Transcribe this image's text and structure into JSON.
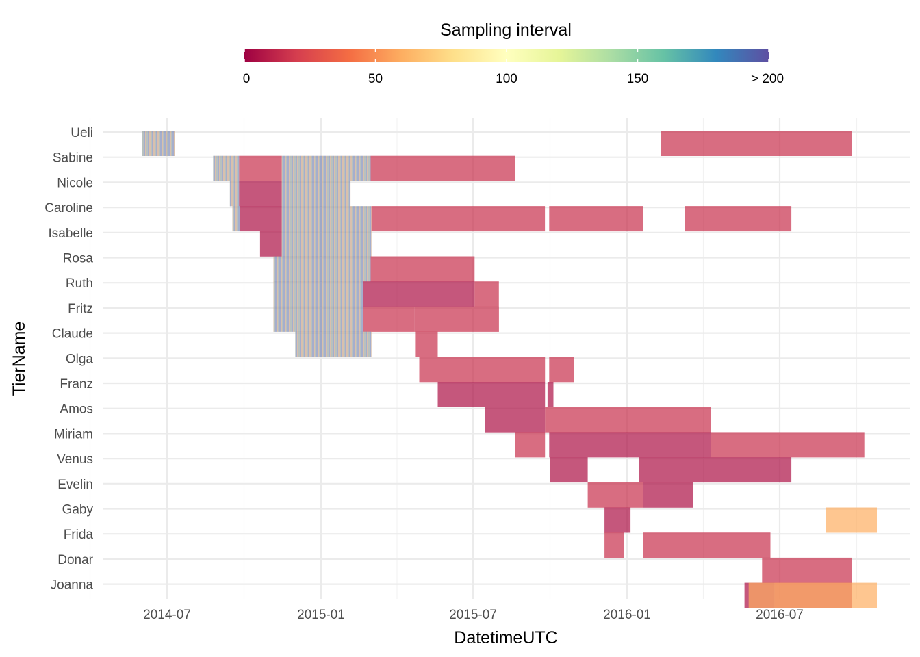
{
  "chart_data": {
    "type": "gantt",
    "xlabel": "DatetimeUTC",
    "ylabel": "TierName",
    "x_ticks": [
      "2014-07",
      "2015-01",
      "2015-07",
      "2016-01",
      "2016-07"
    ],
    "xlim": [
      "2014-05-01",
      "2016-11-20"
    ],
    "grid": true,
    "legend": {
      "title": "Sampling interval",
      "position": "top",
      "type": "colorbar",
      "palette": "Spectral",
      "ticks": [
        "0",
        "50",
        "100",
        "150",
        "> 200"
      ],
      "range": [
        0,
        200
      ],
      "colors": [
        "#9e0142",
        "#d53e4f",
        "#f46d43",
        "#fdae61",
        "#fee08b",
        "#ffffbf",
        "#e6f598",
        "#abdda4",
        "#66c2a5",
        "#3288bd",
        "#5e4fa2"
      ]
    },
    "categories": [
      "Ueli",
      "Sabine",
      "Nicole",
      "Caroline",
      "Isabelle",
      "Rosa",
      "Ruth",
      "Fritz",
      "Claude",
      "Olga",
      "Franz",
      "Amos",
      "Miriam",
      "Venus",
      "Evelin",
      "Gaby",
      "Frida",
      "Donar",
      "Joanna"
    ],
    "series": [
      {
        "name": "Ueli",
        "segments": [
          {
            "start": "2014-06-01",
            "end": "2014-07-10",
            "interval": 200,
            "mixed": true
          },
          {
            "start": "2016-02-10",
            "end": "2016-09-25",
            "interval": 15
          }
        ]
      },
      {
        "name": "Sabine",
        "segments": [
          {
            "start": "2014-08-25",
            "end": "2014-09-25",
            "interval": 200,
            "mixed": true
          },
          {
            "start": "2014-09-25",
            "end": "2014-11-15",
            "interval": 15
          },
          {
            "start": "2014-11-15",
            "end": "2015-03-01",
            "interval": 100,
            "mixed": true
          },
          {
            "start": "2015-03-01",
            "end": "2015-08-20",
            "interval": 15
          }
        ]
      },
      {
        "name": "Nicole",
        "segments": [
          {
            "start": "2014-09-14",
            "end": "2014-09-25",
            "interval": 200,
            "mixed": true
          },
          {
            "start": "2014-09-25",
            "end": "2014-11-15",
            "interval": 5
          },
          {
            "start": "2014-11-15",
            "end": "2015-02-05",
            "interval": 100,
            "mixed": true
          }
        ]
      },
      {
        "name": "Caroline",
        "segments": [
          {
            "start": "2014-09-17",
            "end": "2014-09-26",
            "interval": 200,
            "mixed": true
          },
          {
            "start": "2014-09-26",
            "end": "2014-11-15",
            "interval": 5
          },
          {
            "start": "2014-11-15",
            "end": "2015-03-02",
            "interval": 100,
            "mixed": true
          },
          {
            "start": "2015-03-02",
            "end": "2015-09-25",
            "interval": 15
          },
          {
            "start": "2015-09-30",
            "end": "2016-01-20",
            "interval": 15
          },
          {
            "start": "2016-03-10",
            "end": "2016-07-15",
            "interval": 15
          }
        ]
      },
      {
        "name": "Isabelle",
        "segments": [
          {
            "start": "2014-10-20",
            "end": "2014-11-15",
            "interval": 5
          },
          {
            "start": "2014-11-15",
            "end": "2015-03-02",
            "interval": 100,
            "mixed": true
          }
        ]
      },
      {
        "name": "Rosa",
        "segments": [
          {
            "start": "2014-11-05",
            "end": "2015-03-01",
            "interval": 100,
            "mixed": true
          },
          {
            "start": "2015-03-01",
            "end": "2015-07-03",
            "interval": 15
          }
        ]
      },
      {
        "name": "Ruth",
        "segments": [
          {
            "start": "2014-11-05",
            "end": "2015-02-20",
            "interval": 100,
            "mixed": true
          },
          {
            "start": "2015-02-20",
            "end": "2015-07-03",
            "interval": 5
          },
          {
            "start": "2015-07-03",
            "end": "2015-08-01",
            "interval": 15
          }
        ]
      },
      {
        "name": "Fritz",
        "segments": [
          {
            "start": "2014-11-05",
            "end": "2015-02-20",
            "interval": 100,
            "mixed": true
          },
          {
            "start": "2015-02-20",
            "end": "2015-04-22",
            "interval": 15
          },
          {
            "start": "2015-04-22",
            "end": "2015-08-01",
            "interval": 15
          }
        ]
      },
      {
        "name": "Claude",
        "segments": [
          {
            "start": "2014-12-01",
            "end": "2015-03-02",
            "interval": 100,
            "mixed": true
          },
          {
            "start": "2015-04-23",
            "end": "2015-05-20",
            "interval": 15
          }
        ]
      },
      {
        "name": "Olga",
        "segments": [
          {
            "start": "2015-04-28",
            "end": "2015-09-25",
            "interval": 15
          },
          {
            "start": "2015-09-30",
            "end": "2015-10-30",
            "interval": 15
          }
        ]
      },
      {
        "name": "Franz",
        "segments": [
          {
            "start": "2015-05-20",
            "end": "2015-09-25",
            "interval": 5
          },
          {
            "start": "2015-09-28",
            "end": "2015-10-05",
            "interval": 5
          }
        ]
      },
      {
        "name": "Amos",
        "segments": [
          {
            "start": "2015-07-15",
            "end": "2015-09-25",
            "interval": 5
          },
          {
            "start": "2015-09-25",
            "end": "2016-04-10",
            "interval": 15
          }
        ]
      },
      {
        "name": "Miriam",
        "segments": [
          {
            "start": "2015-08-20",
            "end": "2015-09-25",
            "interval": 15
          },
          {
            "start": "2015-09-30",
            "end": "2016-04-10",
            "interval": 5
          },
          {
            "start": "2016-04-10",
            "end": "2016-10-10",
            "interval": 15
          }
        ]
      },
      {
        "name": "Venus",
        "segments": [
          {
            "start": "2015-10-01",
            "end": "2015-11-15",
            "interval": 5
          },
          {
            "start": "2016-01-15",
            "end": "2016-07-15",
            "interval": 5
          }
        ]
      },
      {
        "name": "Evelin",
        "segments": [
          {
            "start": "2015-11-15",
            "end": "2016-01-20",
            "interval": 15
          },
          {
            "start": "2016-01-20",
            "end": "2016-03-20",
            "interval": 5
          }
        ]
      },
      {
        "name": "Gaby",
        "segments": [
          {
            "start": "2015-12-05",
            "end": "2016-01-05",
            "interval": 5
          },
          {
            "start": "2016-08-25",
            "end": "2016-10-25",
            "interval": 60
          }
        ]
      },
      {
        "name": "Frida",
        "segments": [
          {
            "start": "2015-12-05",
            "end": "2015-12-28",
            "interval": 15
          },
          {
            "start": "2016-01-20",
            "end": "2016-06-20",
            "interval": 15
          }
        ]
      },
      {
        "name": "Donar",
        "segments": [
          {
            "start": "2016-06-10",
            "end": "2016-09-25",
            "interval": 15
          }
        ]
      },
      {
        "name": "Joanna",
        "segments": [
          {
            "start": "2016-05-20",
            "end": "2016-06-25",
            "interval": 5
          },
          {
            "start": "2016-06-25",
            "end": "2016-09-25",
            "interval": 15
          },
          {
            "start": "2016-05-25",
            "end": "2016-10-25",
            "interval": 60
          }
        ]
      }
    ]
  }
}
